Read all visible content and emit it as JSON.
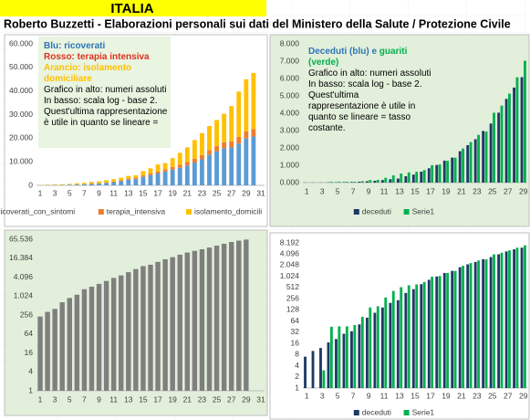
{
  "header": {
    "title": "ITALIA",
    "subtitle": "Roberto Buzzetti - Elaborazioni personali sui dati del Ministero della Salute / Protezione Civile"
  },
  "chart_data": [
    {
      "type": "bar",
      "stacked": true,
      "categories": [
        1,
        null,
        3,
        null,
        5,
        null,
        7,
        null,
        9,
        null,
        11,
        null,
        13,
        null,
        15,
        null,
        17,
        null,
        19,
        null,
        21,
        null,
        23,
        null,
        25,
        null,
        27,
        null,
        29,
        null,
        31
      ],
      "series": [
        {
          "name": "ricoverati_con_sintomi",
          "color": "#5b9bd5",
          "values": [
            54,
            99,
            114,
            128,
            248,
            345,
            401,
            639,
            742,
            1034,
            1346,
            1790,
            2394,
            2651,
            3557,
            4316,
            5038,
            5838,
            6650,
            7426,
            8372,
            9663,
            11025,
            12894,
            14363,
            15757,
            16020,
            17708,
            19846,
            20692,
            null
          ]
        },
        {
          "name": "terapia_intensiva",
          "color": "#ed7d31",
          "values": [
            26,
            23,
            35,
            36,
            56,
            64,
            105,
            140,
            166,
            229,
            295,
            351,
            462,
            567,
            650,
            733,
            877,
            1028,
            1153,
            1328,
            1518,
            1672,
            1851,
            2060,
            2257,
            2498,
            2655,
            2857,
            3009,
            3204,
            null
          ]
        },
        {
          "name": "isolamento_domicili",
          "color": "#ffc000",
          "values": [
            94,
            162,
            221,
            247,
            324,
            474,
            558,
            685,
            790,
            927,
            1000,
            1065,
            1155,
            1060,
            1843,
            2180,
            2936,
            2599,
            3724,
            5036,
            6201,
            7860,
            9268,
            10197,
            11108,
            12090,
            14935,
            19185,
            22116,
            23783,
            null
          ]
        }
      ],
      "ylim": [
        0,
        60000
      ],
      "yticks": [
        0,
        {
          "value": 10000,
          "label": "10.000"
        },
        {
          "value": 20000,
          "label": "20.000"
        },
        {
          "value": 30000,
          "label": "30.000"
        },
        {
          "value": 40000,
          "label": "40.000"
        },
        {
          "value": 50000,
          "label": "50.000"
        },
        {
          "value": 60000,
          "label": "60.000"
        }
      ],
      "annotations": [
        [
          {
            "text": "Blu: ricoverati",
            "color": "#2e75b6",
            "bold": true
          }
        ],
        [
          {
            "text": "Rosso: terapia intensiva",
            "color": "#e0301e",
            "bold": true
          }
        ],
        [
          {
            "text": "Arancio: isolamento",
            "color": "#ffc000",
            "bold": true
          }
        ],
        [
          {
            "text": "domiciliare",
            "color": "#ffc000",
            "bold": true
          }
        ],
        [
          {
            "text": "Grafico in alto: numeri assoluti",
            "color": "#000000",
            "bold": false
          }
        ],
        [
          {
            "text": "In basso: scala log - base 2.",
            "color": "#000000",
            "bold": false
          }
        ],
        [
          {
            "text": "Quest'ultima rappresentazione",
            "color": "#000000",
            "bold": false
          }
        ],
        [
          {
            "text": "è utile in quanto se lineare =",
            "color": "#000000",
            "bold": false
          }
        ]
      ]
    },
    {
      "type": "bar",
      "stacked": false,
      "categories": [
        1,
        null,
        3,
        null,
        5,
        null,
        7,
        null,
        9,
        null,
        11,
        null,
        13,
        null,
        15,
        null,
        17,
        null,
        19,
        null,
        21,
        null,
        23,
        null,
        25,
        null,
        27,
        null,
        29
      ],
      "series": [
        {
          "name": "deceduti",
          "color": "#1f3864",
          "values": [
            7,
            10,
            12,
            17,
            21,
            29,
            34,
            52,
            79,
            107,
            148,
            197,
            233,
            366,
            463,
            631,
            827,
            1016,
            1266,
            1441,
            1809,
            2158,
            2503,
            2978,
            3405,
            4032,
            4825,
            5476,
            6077
          ]
        },
        {
          "name": "Serie1",
          "color": "#00b050",
          "values": [
            1,
            1,
            3,
            45,
            46,
            46,
            50,
            83,
            149,
            160,
            276,
            414,
            523,
            589,
            622,
            724,
            1004,
            1045,
            1258,
            1439,
            1966,
            2335,
            2749,
            2941,
            4025,
            4440,
            5129,
            6072,
            7024
          ]
        }
      ],
      "ylim": [
        0,
        8000
      ],
      "yticks": [
        {
          "value": 0,
          "label": "0.000"
        },
        {
          "value": 1000,
          "label": "1.000"
        },
        {
          "value": 2000,
          "label": "2.000"
        },
        {
          "value": 3000,
          "label": "3.000"
        },
        {
          "value": 4000,
          "label": "4.000"
        },
        {
          "value": 5000,
          "label": "5.000"
        },
        {
          "value": 6000,
          "label": "6.000"
        },
        {
          "value": 7000,
          "label": "7.000"
        },
        {
          "value": 8000,
          "label": "8.000"
        }
      ],
      "annotations": [
        [
          {
            "text": "Deceduti (blu) e ",
            "color": "#2e75b6",
            "bold": true
          },
          {
            "text": "guariti",
            "color": "#00b050",
            "bold": true
          }
        ],
        [
          {
            "text": "(verde)",
            "color": "#00b050",
            "bold": true
          }
        ],
        [
          {
            "text": "Grafico in alto: numeri assoluti",
            "color": "#000000",
            "bold": false
          }
        ],
        [
          {
            "text": "In basso: scala log - base 2.",
            "color": "#000000",
            "bold": false
          }
        ],
        [
          {
            "text": "Quest'ultima",
            "color": "#000000",
            "bold": false
          }
        ],
        [
          {
            "text": "rappresentazione è utile in",
            "color": "#000000",
            "bold": false
          }
        ],
        [
          {
            "text": "quanto se lineare = tasso",
            "color": "#000000",
            "bold": false
          }
        ],
        [
          {
            "text": "costante.",
            "color": "#000000",
            "bold": false
          }
        ]
      ]
    },
    {
      "type": "bar",
      "stacked": false,
      "log_base": 2,
      "categories": [
        1,
        null,
        3,
        null,
        5,
        null,
        7,
        null,
        9,
        null,
        11,
        null,
        13,
        null,
        15,
        null,
        17,
        null,
        19,
        null,
        21,
        null,
        23,
        null,
        25,
        null,
        27,
        null,
        29,
        null,
        31
      ],
      "series": [
        {
          "color": "#7f7f7f",
          "values": [
            229,
            322,
            400,
            650,
            888,
            1128,
            1694,
            2036,
            2502,
            3089,
            3858,
            4636,
            5883,
            7375,
            9172,
            10149,
            12462,
            15113,
            17660,
            21157,
            24747,
            27980,
            31506,
            35713,
            41035,
            47021,
            53578,
            59138,
            63927,
            null,
            null
          ]
        }
      ],
      "ylim": [
        1,
        65536
      ],
      "yticks": [
        1,
        4,
        16,
        64,
        256,
        {
          "value": 1024,
          "label": "1.024"
        },
        {
          "value": 4096,
          "label": "4.096"
        },
        {
          "value": 16384,
          "label": "16.384"
        },
        {
          "value": 65536,
          "label": "65.536"
        }
      ]
    },
    {
      "type": "bar",
      "stacked": false,
      "log_base": 2,
      "categories": [
        1,
        null,
        3,
        null,
        5,
        null,
        7,
        null,
        9,
        null,
        11,
        null,
        13,
        null,
        15,
        null,
        17,
        null,
        19,
        null,
        21,
        null,
        23,
        null,
        25,
        null,
        27,
        null,
        29
      ],
      "series": [
        {
          "name": "deceduti",
          "color": "#1f3864",
          "values": [
            7,
            10,
            12,
            17,
            21,
            29,
            34,
            52,
            79,
            107,
            148,
            197,
            233,
            366,
            463,
            631,
            827,
            1016,
            1266,
            1441,
            1809,
            2158,
            2503,
            2978,
            3405,
            4032,
            4825,
            5476,
            6077
          ]
        },
        {
          "name": "Serie1",
          "color": "#00b050",
          "values": [
            1,
            1,
            3,
            45,
            46,
            46,
            50,
            83,
            149,
            160,
            276,
            414,
            523,
            589,
            622,
            724,
            1004,
            1045,
            1258,
            1439,
            1966,
            2335,
            2749,
            2941,
            4025,
            4440,
            5129,
            6072,
            7024
          ]
        }
      ],
      "ylim": [
        1,
        8192
      ],
      "yticks": [
        1,
        2,
        4,
        8,
        16,
        32,
        64,
        128,
        256,
        512,
        {
          "value": 1024,
          "label": "1.024"
        },
        {
          "value": 2048,
          "label": "2.048"
        },
        {
          "value": 4096,
          "label": "4.096"
        },
        {
          "value": 8192,
          "label": "8.192"
        }
      ]
    }
  ]
}
